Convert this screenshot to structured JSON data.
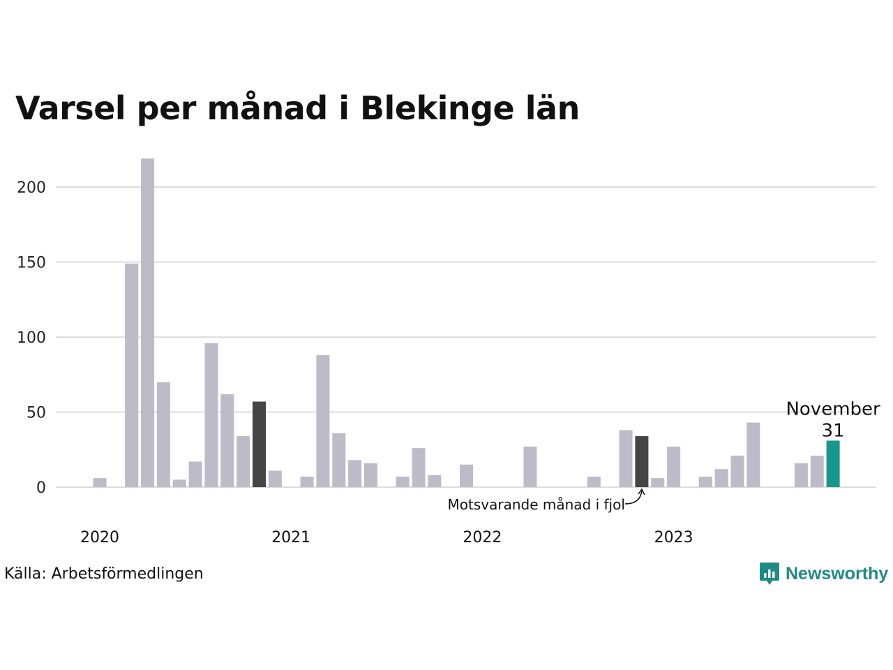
{
  "chart_data": {
    "type": "bar",
    "title": "Varsel per månad i Blekinge län",
    "xlabel": "",
    "ylabel": "",
    "ylim": [
      0,
      220
    ],
    "yticks": [
      0,
      50,
      100,
      150,
      200
    ],
    "year_labels": [
      "2020",
      "2021",
      "2022",
      "2023"
    ],
    "grid": true,
    "categories": [
      "2020-01",
      "2020-02",
      "2020-03",
      "2020-04",
      "2020-05",
      "2020-06",
      "2020-07",
      "2020-08",
      "2020-09",
      "2020-10",
      "2020-11",
      "2020-12",
      "2021-01",
      "2021-02",
      "2021-03",
      "2021-04",
      "2021-05",
      "2021-06",
      "2021-07",
      "2021-08",
      "2021-09",
      "2021-10",
      "2021-11",
      "2021-12",
      "2022-01",
      "2022-02",
      "2022-03",
      "2022-04",
      "2022-05",
      "2022-06",
      "2022-07",
      "2022-08",
      "2022-09",
      "2022-10",
      "2022-11",
      "2022-12",
      "2023-01",
      "2023-02",
      "2023-03",
      "2023-04",
      "2023-05",
      "2023-06",
      "2023-07",
      "2023-08",
      "2023-09",
      "2023-10",
      "2023-11"
    ],
    "values": [
      6,
      0,
      149,
      219,
      70,
      5,
      17,
      96,
      62,
      34,
      57,
      11,
      0,
      7,
      88,
      36,
      18,
      16,
      0,
      7,
      26,
      8,
      0,
      15,
      0,
      0,
      0,
      27,
      0,
      0,
      0,
      7,
      0,
      38,
      34,
      6,
      27,
      0,
      7,
      12,
      21,
      43,
      0,
      0,
      16,
      21,
      31
    ],
    "highlight_prev_year": [
      "2020-11",
      "2022-11"
    ],
    "current": {
      "category": "2023-11",
      "label": "November",
      "value": "31"
    },
    "annotation": "Motsvarande månad i fjol",
    "colors": {
      "bar": "#bdbbc8",
      "prev_year": "#454545",
      "current": "#17968c",
      "grid": "#dddddd"
    }
  },
  "source": "Källa: Arbetsförmedlingen",
  "brand": {
    "name": "Newsworthy",
    "icon": "newsworthy-logo-icon"
  }
}
